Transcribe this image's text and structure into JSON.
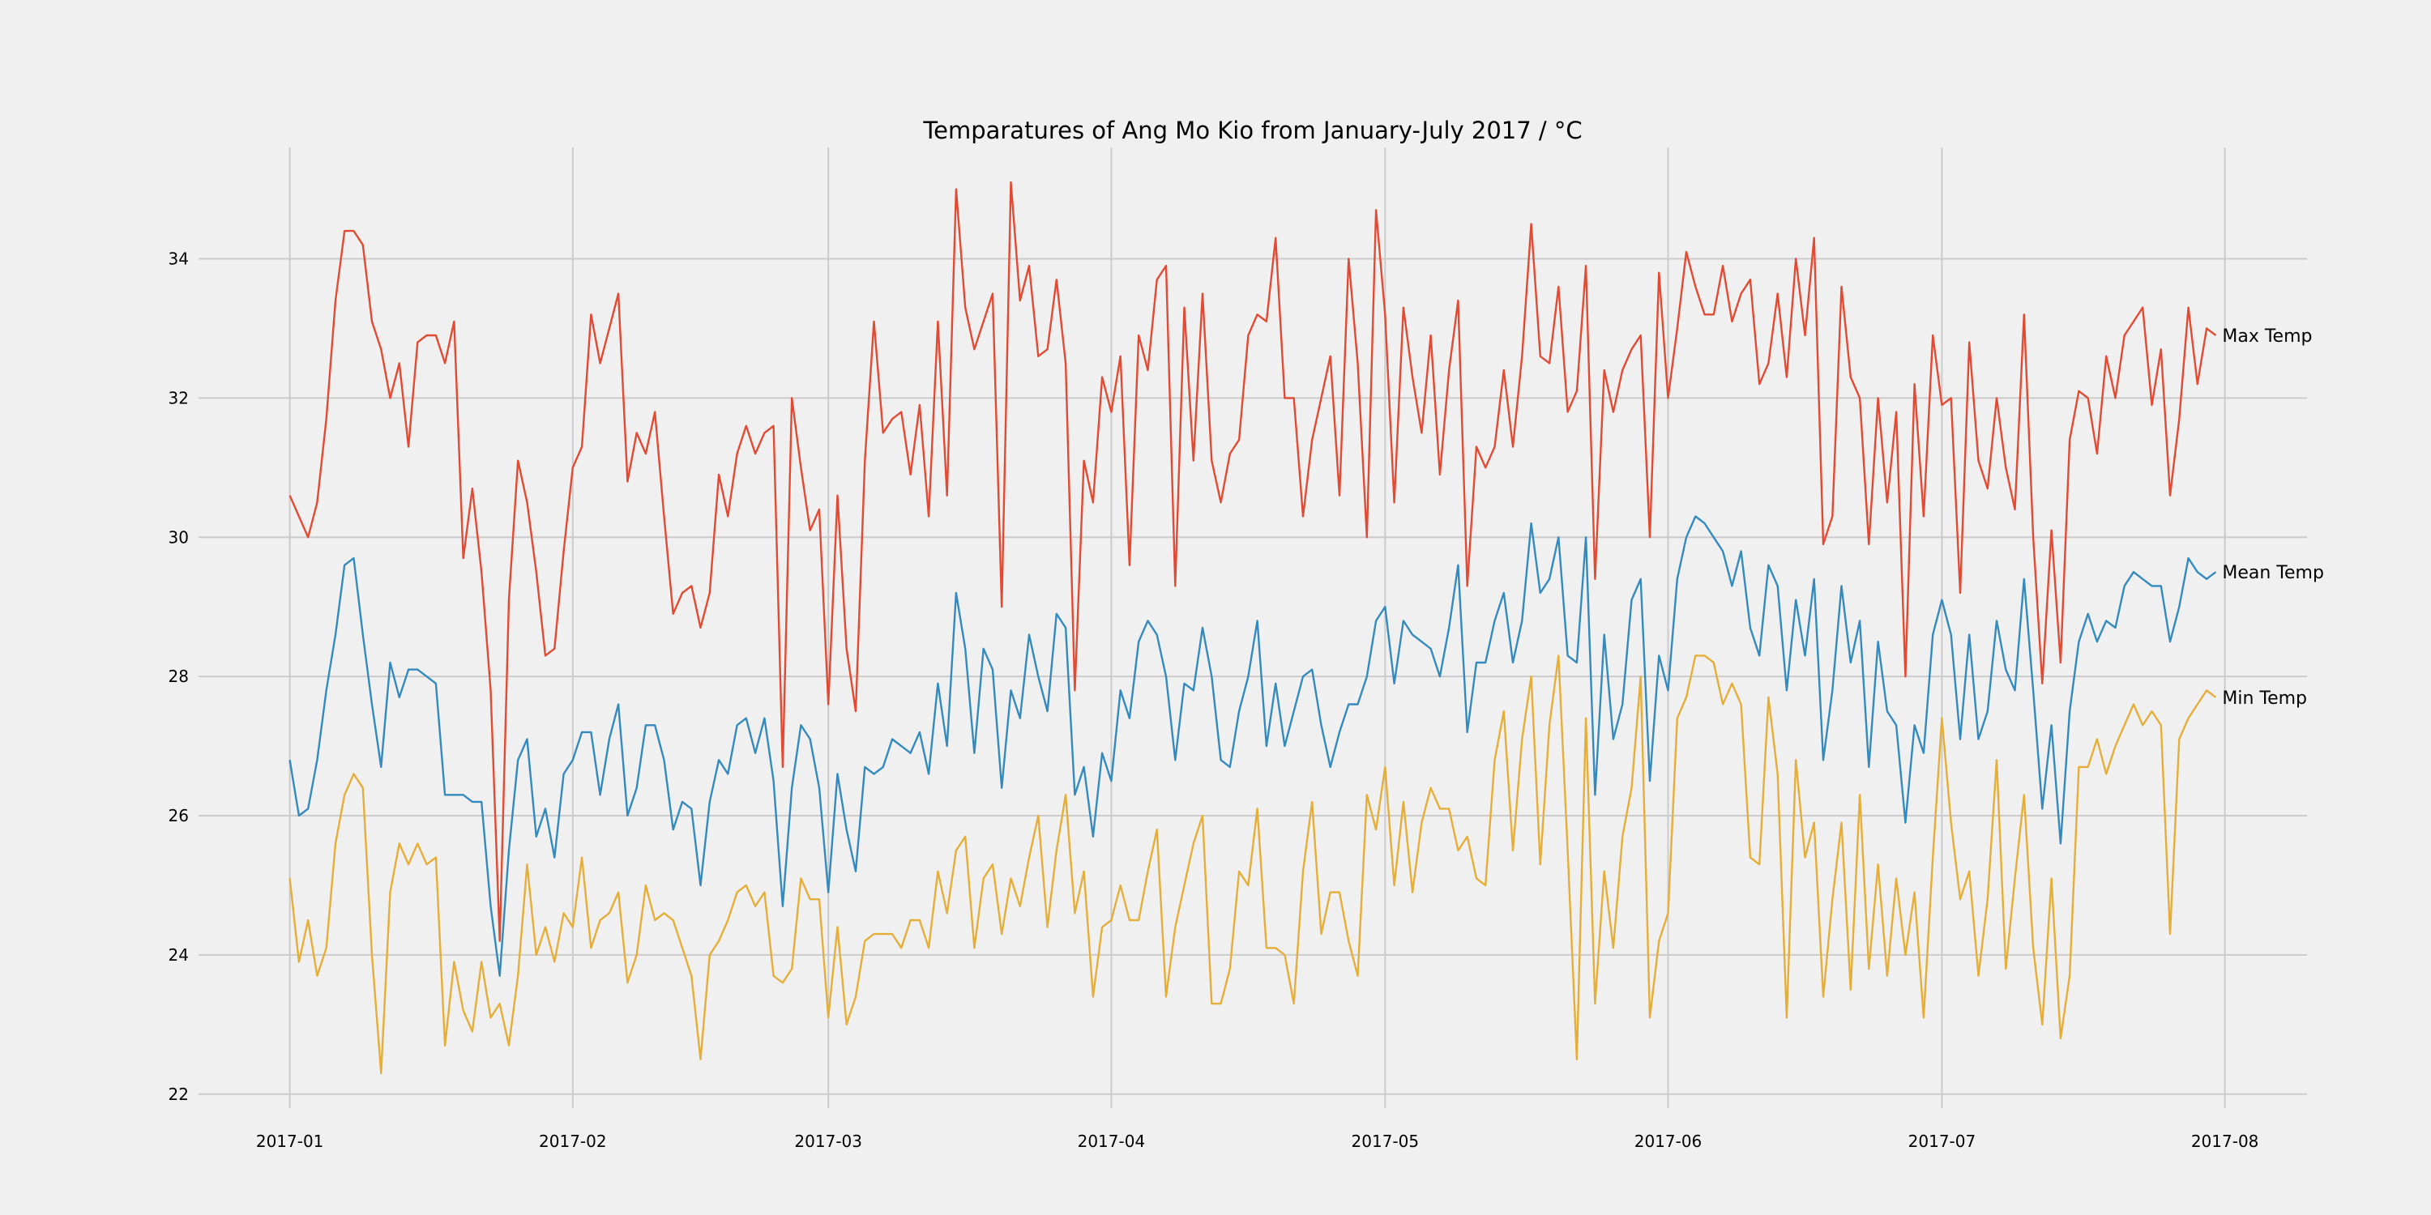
{
  "chart_data": {
    "type": "line",
    "title": "Temparatures of Ang Mo Kio from January-July 2017 / °C",
    "xlabel": "",
    "ylabel": "",
    "ylim": [
      21.8,
      35.6
    ],
    "xlim": [
      "2016-12-22",
      "2017-08-10"
    ],
    "grid": true,
    "legend": "none",
    "x_start": "2017-01-01",
    "x_step_days": 1,
    "x_ticks": [
      "2017-01-01",
      "2017-02-01",
      "2017-03-01",
      "2017-04-01",
      "2017-05-01",
      "2017-06-01",
      "2017-07-01",
      "2017-08-01"
    ],
    "x_tick_labels": [
      "2017-01",
      "2017-02",
      "2017-03",
      "2017-04",
      "2017-05",
      "2017-06",
      "2017-07",
      "2017-08"
    ],
    "y_ticks": [
      22,
      24,
      26,
      28,
      30,
      32,
      34
    ],
    "y_tick_labels": [
      "22",
      "24",
      "26",
      "28",
      "30",
      "32",
      "34"
    ],
    "series": [
      {
        "name": "Max Temp",
        "color": "#e24a33",
        "values": [
          30.6,
          30.3,
          30.0,
          30.5,
          31.7,
          33.4,
          34.4,
          34.4,
          34.2,
          33.1,
          32.7,
          32.0,
          32.5,
          31.3,
          32.8,
          32.9,
          32.9,
          32.5,
          33.1,
          29.7,
          30.7,
          29.5,
          27.8,
          24.2,
          29.1,
          31.1,
          30.5,
          29.5,
          28.3,
          28.4,
          29.8,
          31.0,
          31.3,
          33.2,
          32.5,
          33.0,
          33.5,
          30.8,
          31.5,
          31.2,
          31.8,
          30.3,
          28.9,
          29.2,
          29.3,
          28.7,
          29.2,
          30.9,
          30.3,
          31.2,
          31.6,
          31.2,
          31.5,
          31.6,
          26.7,
          32.0,
          31.0,
          30.1,
          30.4,
          27.6,
          30.6,
          28.4,
          27.5,
          31.1,
          33.1,
          31.5,
          31.7,
          31.8,
          30.9,
          31.9,
          30.3,
          33.1,
          30.6,
          35.0,
          33.3,
          32.7,
          33.1,
          33.5,
          29.0,
          35.1,
          33.4,
          33.9,
          32.6,
          32.7,
          33.7,
          32.5,
          27.8,
          31.1,
          30.5,
          32.3,
          31.8,
          32.6,
          29.6,
          32.9,
          32.4,
          33.7,
          33.9,
          29.3,
          33.3,
          31.1,
          33.5,
          31.1,
          30.5,
          31.2,
          31.4,
          32.9,
          33.2,
          33.1,
          34.3,
          32.0,
          32.0,
          30.3,
          31.4,
          32.0,
          32.6,
          30.6,
          34.0,
          32.5,
          30.0,
          34.7,
          33.2,
          30.5,
          33.3,
          32.3,
          31.5,
          32.9,
          30.9,
          32.4,
          33.4,
          29.3,
          31.3,
          31.0,
          31.3,
          32.4,
          31.3,
          32.6,
          34.5,
          32.6,
          32.5,
          33.6,
          31.8,
          32.1,
          33.9,
          29.4,
          32.4,
          31.8,
          32.4,
          32.7,
          32.9,
          30.0,
          33.8,
          32.0,
          33.0,
          34.1,
          33.6,
          33.2,
          33.2,
          33.9,
          33.1,
          33.5,
          33.7,
          32.2,
          32.5,
          33.5,
          32.3,
          34.0,
          32.9,
          34.3,
          29.9,
          30.3,
          33.6,
          32.3,
          32.0,
          29.9,
          32.0,
          30.5,
          31.8,
          28.0,
          32.2,
          30.3,
          32.9,
          31.9,
          32.0,
          29.2,
          32.8,
          31.1,
          30.7,
          32.0,
          31.0,
          30.4,
          33.2,
          30.0,
          27.9,
          30.1,
          28.2,
          31.4,
          32.1,
          32.0,
          31.2,
          32.6,
          32.0,
          32.9,
          33.1,
          33.3,
          31.9,
          32.7,
          30.6,
          31.7,
          33.3,
          32.2,
          33.0,
          32.9
        ]
      },
      {
        "name": "Mean Temp",
        "color": "#348abd",
        "values": [
          26.8,
          26.0,
          26.1,
          26.8,
          27.8,
          28.6,
          29.6,
          29.7,
          28.6,
          27.6,
          26.7,
          28.2,
          27.7,
          28.1,
          28.1,
          28.0,
          27.9,
          26.3,
          26.3,
          26.3,
          26.2,
          26.2,
          24.7,
          23.7,
          25.5,
          26.8,
          27.1,
          25.7,
          26.1,
          25.4,
          26.6,
          26.8,
          27.2,
          27.2,
          26.3,
          27.1,
          27.6,
          26.0,
          26.4,
          27.3,
          27.3,
          26.8,
          25.8,
          26.2,
          26.1,
          25.0,
          26.2,
          26.8,
          26.6,
          27.3,
          27.4,
          26.9,
          27.4,
          26.5,
          24.7,
          26.4,
          27.3,
          27.1,
          26.4,
          24.9,
          26.6,
          25.8,
          25.2,
          26.7,
          26.6,
          26.7,
          27.1,
          27.0,
          26.9,
          27.2,
          26.6,
          27.9,
          27.0,
          29.2,
          28.4,
          26.9,
          28.4,
          28.1,
          26.4,
          27.8,
          27.4,
          28.6,
          28.0,
          27.5,
          28.9,
          28.7,
          26.3,
          26.7,
          25.7,
          26.9,
          26.5,
          27.8,
          27.4,
          28.5,
          28.8,
          28.6,
          28.0,
          26.8,
          27.9,
          27.8,
          28.7,
          28.0,
          26.8,
          26.7,
          27.5,
          28.0,
          28.8,
          27.0,
          27.9,
          27.0,
          27.5,
          28.0,
          28.1,
          27.3,
          26.7,
          27.2,
          27.6,
          27.6,
          28.0,
          28.8,
          29.0,
          27.9,
          28.8,
          28.6,
          28.5,
          28.4,
          28.0,
          28.7,
          29.6,
          27.2,
          28.2,
          28.2,
          28.8,
          29.2,
          28.2,
          28.8,
          30.2,
          29.2,
          29.4,
          30.0,
          28.3,
          28.2,
          30.0,
          26.3,
          28.6,
          27.1,
          27.6,
          29.1,
          29.4,
          26.5,
          28.3,
          27.8,
          29.4,
          30.0,
          30.3,
          30.2,
          30.0,
          29.8,
          29.3,
          29.8,
          28.7,
          28.3,
          29.6,
          29.3,
          27.8,
          29.1,
          28.3,
          29.4,
          26.8,
          27.8,
          29.3,
          28.2,
          28.8,
          26.7,
          28.5,
          27.5,
          27.3,
          25.9,
          27.3,
          26.9,
          28.6,
          29.1,
          28.6,
          27.1,
          28.6,
          27.1,
          27.5,
          28.8,
          28.1,
          27.8,
          29.4,
          27.8,
          26.1,
          27.3,
          25.6,
          27.5,
          28.5,
          28.9,
          28.5,
          28.8,
          28.7,
          29.3,
          29.5,
          29.4,
          29.3,
          29.3,
          28.5,
          29.0,
          29.7,
          29.5,
          29.4,
          29.5
        ]
      },
      {
        "name": "Min Temp",
        "color": "#e5ae38",
        "values": [
          25.1,
          23.9,
          24.5,
          23.7,
          24.1,
          25.6,
          26.3,
          26.6,
          26.4,
          24.0,
          22.3,
          24.9,
          25.6,
          25.3,
          25.6,
          25.3,
          25.4,
          22.7,
          23.9,
          23.2,
          22.9,
          23.9,
          23.1,
          23.3,
          22.7,
          23.7,
          25.3,
          24.0,
          24.4,
          23.9,
          24.6,
          24.4,
          25.4,
          24.1,
          24.5,
          24.6,
          24.9,
          23.6,
          24.0,
          25.0,
          24.5,
          24.6,
          24.5,
          24.1,
          23.7,
          22.5,
          24.0,
          24.2,
          24.5,
          24.9,
          25.0,
          24.7,
          24.9,
          23.7,
          23.6,
          23.8,
          25.1,
          24.8,
          24.8,
          23.1,
          24.4,
          23.0,
          23.4,
          24.2,
          24.3,
          24.3,
          24.3,
          24.1,
          24.5,
          24.5,
          24.1,
          25.2,
          24.6,
          25.5,
          25.7,
          24.1,
          25.1,
          25.3,
          24.3,
          25.1,
          24.7,
          25.4,
          26.0,
          24.4,
          25.5,
          26.3,
          24.6,
          25.2,
          23.4,
          24.4,
          24.5,
          25.0,
          24.5,
          24.5,
          25.2,
          25.8,
          23.4,
          24.4,
          25.0,
          25.6,
          26.0,
          23.3,
          23.3,
          23.8,
          25.2,
          25.0,
          26.1,
          24.1,
          24.1,
          24.0,
          23.3,
          25.2,
          26.2,
          24.3,
          24.9,
          24.9,
          24.2,
          23.7,
          26.3,
          25.8,
          26.7,
          25.0,
          26.2,
          24.9,
          25.9,
          26.4,
          26.1,
          26.1,
          25.5,
          25.7,
          25.1,
          25.0,
          26.8,
          27.5,
          25.5,
          27.1,
          28.0,
          25.3,
          27.3,
          28.3,
          25.5,
          22.5,
          27.4,
          23.3,
          25.2,
          24.1,
          25.7,
          26.4,
          28.0,
          23.1,
          24.2,
          24.6,
          27.4,
          27.7,
          28.3,
          28.3,
          28.2,
          27.6,
          27.9,
          27.6,
          25.4,
          25.3,
          27.7,
          26.6,
          23.1,
          26.8,
          25.4,
          25.9,
          23.4,
          24.8,
          25.9,
          23.5,
          26.3,
          23.8,
          25.3,
          23.7,
          25.1,
          24.0,
          24.9,
          23.1,
          25.4,
          27.4,
          25.9,
          24.8,
          25.2,
          23.7,
          24.8,
          26.8,
          23.8,
          25.1,
          26.3,
          24.1,
          23.0,
          25.1,
          22.8,
          23.7,
          26.7,
          26.7,
          27.1,
          26.6,
          27.0,
          27.3,
          27.6,
          27.3,
          27.5,
          27.3,
          24.3,
          27.1,
          27.4,
          27.6,
          27.8,
          27.7
        ]
      }
    ]
  }
}
